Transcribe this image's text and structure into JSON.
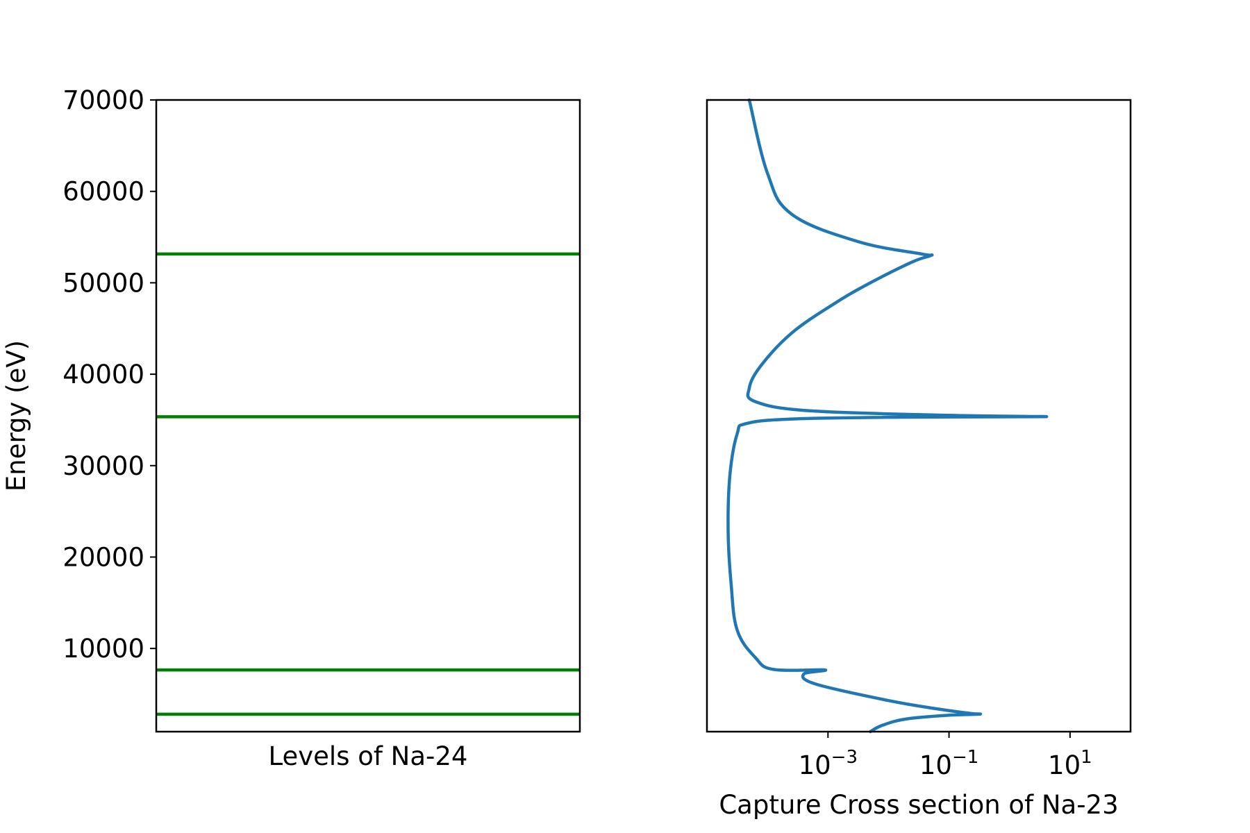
{
  "chart_data": [
    {
      "type": "line",
      "xlabel": "Levels of Na-24",
      "ylabel": "Energy (eV)",
      "ylim": [
        900,
        70000
      ],
      "yticks": [
        10000,
        20000,
        30000,
        40000,
        50000,
        60000,
        70000
      ],
      "ytick_labels": [
        "10000",
        "20000",
        "30000",
        "40000",
        "50000",
        "60000",
        "70000"
      ],
      "grid": false,
      "line_color": "#008000",
      "levels": [
        2810,
        7650,
        35350,
        53150
      ]
    },
    {
      "type": "line",
      "xlabel": "Capture Cross section of Na-23",
      "ylabel": "",
      "xscale": "log",
      "xlim_log10": [
        -5,
        2
      ],
      "ylim": [
        900,
        70000
      ],
      "xticks_log10": [
        -3,
        -1,
        1
      ],
      "xtick_labels": [
        {
          "base": "10",
          "exp": "−3"
        },
        {
          "base": "10",
          "exp": "−1"
        },
        {
          "base": "10",
          "exp": "1"
        }
      ],
      "grid": false,
      "line_color": "#1f77b4",
      "series": [
        {
          "x_log10": [
            -2.3,
            -2.1,
            -1.7,
            -1.0,
            -0.5,
            -0.65,
            -1.2,
            -2.0,
            -3.2,
            -3.4,
            -3.05,
            -3.9,
            -4.2,
            -4.5,
            -4.6,
            -4.65,
            -4.62,
            -4.5,
            -4.35,
            -3.6,
            -1.8,
            0.6,
            -1.0,
            -3.3,
            -4.2,
            -4.3,
            -4.1,
            -3.6,
            -2.9,
            -2.3,
            -1.6,
            -1.3,
            -1.45,
            -2.5,
            -3.6,
            -4.0,
            -4.3
          ],
          "y": [
            900,
            1600,
            2300,
            2700,
            2810,
            2900,
            3400,
            4300,
            6100,
            7200,
            7650,
            7700,
            9000,
            12000,
            17000,
            23000,
            29000,
            33500,
            34600,
            35100,
            35300,
            35350,
            35500,
            36000,
            37000,
            38500,
            41000,
            44500,
            47700,
            50000,
            52300,
            53000,
            53150,
            54500,
            57500,
            62000,
            70000
          ]
        }
      ]
    }
  ]
}
